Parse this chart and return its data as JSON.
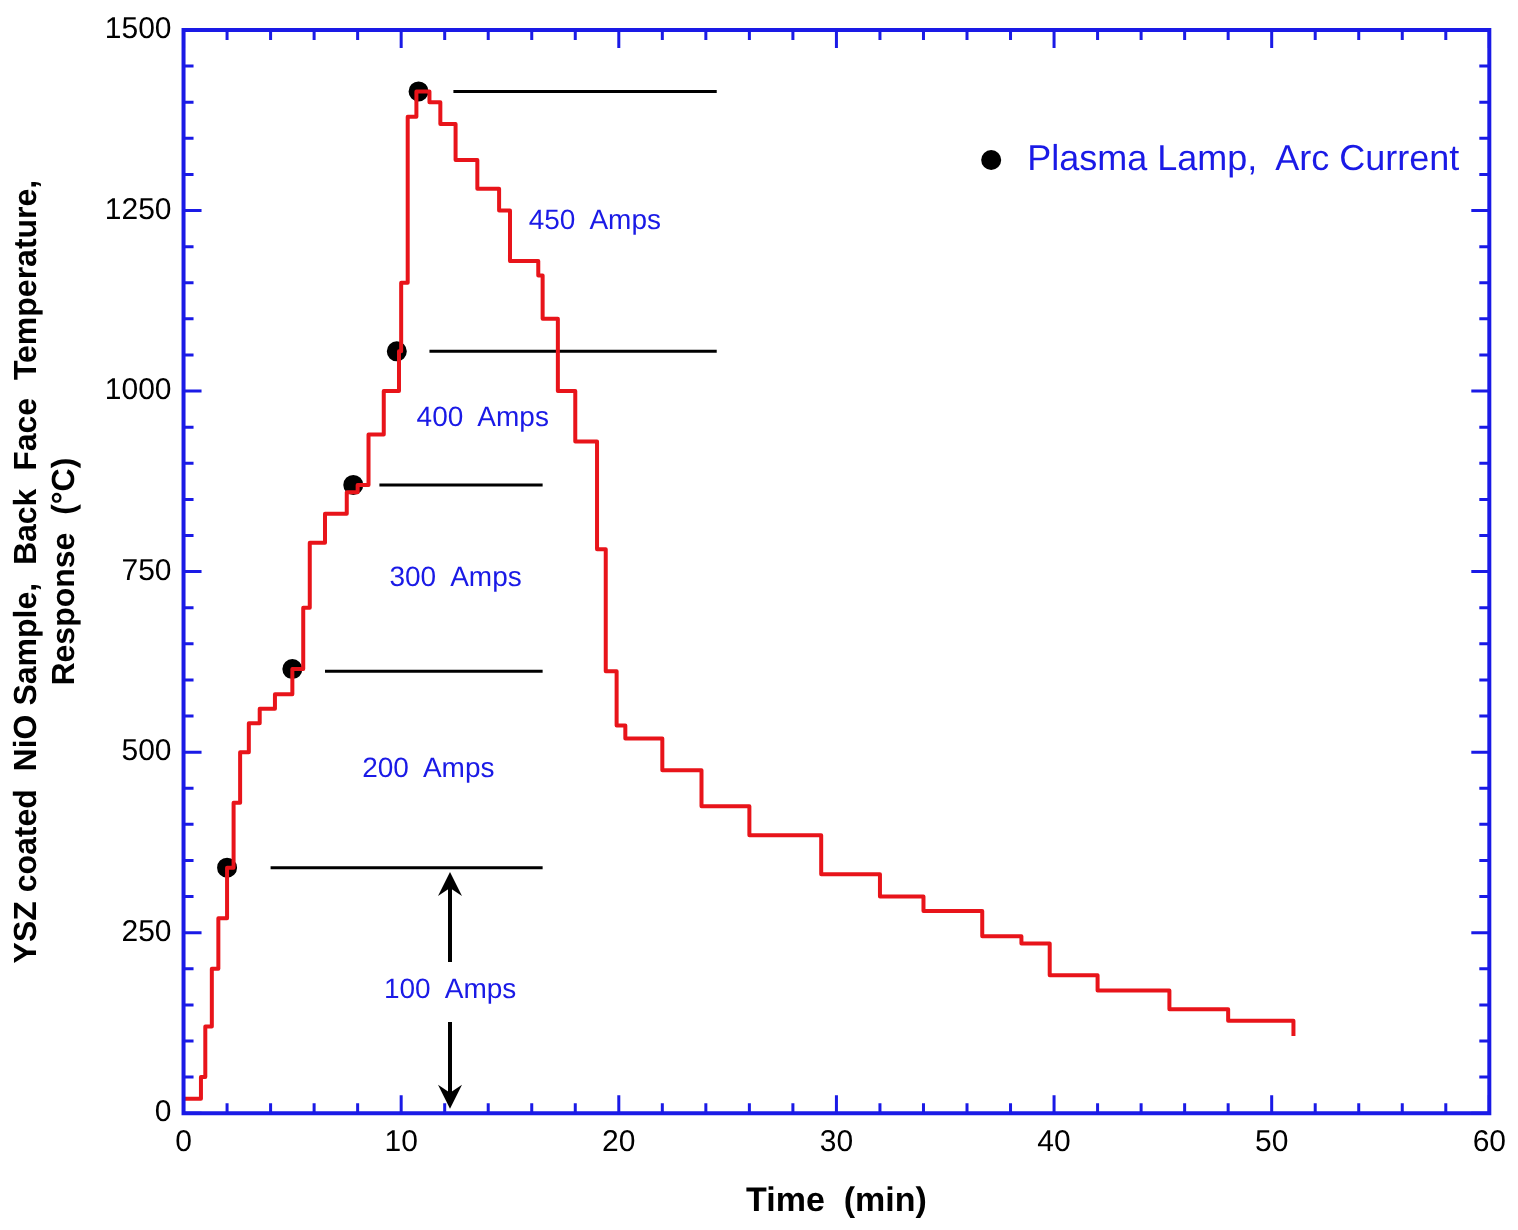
{
  "chart_data": {
    "type": "step",
    "xlabel": "Time  (min)",
    "ylabel": "YSZ coated  NiO Sample,  Back  Face  Temperature,\nResponse  (°C)",
    "xlim": [
      0,
      60
    ],
    "xticks": [
      0,
      10,
      20,
      30,
      40,
      50,
      60
    ],
    "ylim": [
      0,
      1500
    ],
    "yticks": [
      0,
      250,
      500,
      750,
      1000,
      1250,
      1500
    ],
    "grid": false,
    "legend": "top right",
    "series": [
      {
        "color": "#e8141a",
        "x": [
          0,
          0.7,
          0.8,
          1.0,
          1.3,
          1.6,
          2.0,
          2.3,
          2.6,
          3.0,
          3.5,
          4.2,
          5.0,
          5.5,
          5.8,
          6.5,
          7.5,
          8.0,
          8.5,
          9.2,
          9.9,
          10.0,
          10.3,
          10.7,
          11.3,
          11.8,
          12.5,
          13.5,
          14.5,
          15.0,
          16.3,
          16.5,
          17.2,
          18.0,
          19.0,
          19.4,
          19.9,
          20.3,
          22,
          23.8,
          26,
          29.3,
          32,
          34,
          36.7,
          38.5,
          39.8,
          42,
          45.3,
          48,
          51
        ],
        "values": [
          20,
          20,
          50,
          120,
          200,
          270,
          340,
          430,
          500,
          540,
          560,
          580,
          615,
          700,
          790,
          830,
          860,
          870,
          940,
          1000,
          1055,
          1150,
          1380,
          1415,
          1400,
          1370,
          1320,
          1280,
          1250,
          1180,
          1160,
          1100,
          1000,
          930,
          781,
          612,
          537,
          519,
          475,
          425,
          385,
          331,
          300,
          280,
          245,
          235,
          191,
          170,
          144,
          128,
          107
        ]
      },
      {
        "type": "line",
        "color": "#000000",
        "x": [
          4,
          16.5
        ],
        "values": [
          340,
          340
        ]
      },
      {
        "type": "line",
        "color": "#000000",
        "x": [
          6.5,
          16.5
        ],
        "values": [
          612,
          612
        ]
      },
      {
        "type": "line",
        "color": "#000000",
        "x": [
          9,
          16.5
        ],
        "values": [
          870,
          870
        ]
      },
      {
        "type": "line",
        "color": "#000000",
        "x": [
          11.3,
          24.5
        ],
        "values": [
          1055,
          1055
        ]
      },
      {
        "type": "line",
        "color": "#000000",
        "x": [
          12.4,
          24.5
        ],
        "values": [
          1415,
          1415
        ]
      },
      {
        "type": "scatter",
        "name": "Plasma Lamp,  Arc Current",
        "color": "#000000",
        "marker": "circle",
        "x": [
          2,
          5,
          7.8,
          9.8,
          10.8
        ],
        "values": [
          340,
          615,
          870,
          1055,
          1415
        ]
      }
    ],
    "annotations": [
      "450  Amps",
      "400  Amps",
      "300  Amps",
      "200  Amps",
      "100  Amps"
    ]
  }
}
